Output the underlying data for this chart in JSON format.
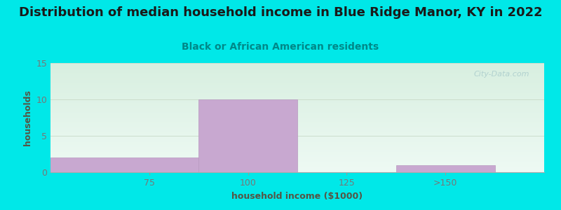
{
  "title": "Distribution of median household income in Blue Ridge Manor, KY in 2022",
  "subtitle": "Black or African American residents",
  "xlabel": "household income ($1000)",
  "ylabel": "households",
  "bin_edges": [
    50,
    87.5,
    112.5,
    137.5,
    162.5
  ],
  "bar_values": [
    2,
    10,
    0,
    1
  ],
  "xtick_values": [
    75,
    100,
    125
  ],
  "xtick_extra": ">150",
  "xtick_extra_pos": 150,
  "bar_color": "#c8a8d0",
  "bar_edge_color": "#b899c0",
  "ylim": [
    0,
    15
  ],
  "xlim": [
    50,
    175
  ],
  "yticks": [
    0,
    5,
    10,
    15
  ],
  "background_color": "#00e8e8",
  "plot_bg_top": "#d8efe0",
  "plot_bg_bottom": "#eefaf4",
  "title_color": "#1a1a1a",
  "subtitle_color": "#008888",
  "axis_label_color": "#555544",
  "tick_color": "#777777",
  "grid_color": "#ccddcc",
  "watermark_text": "City-Data.com",
  "watermark_color": "#aacccc",
  "title_fontsize": 13,
  "subtitle_fontsize": 10,
  "label_fontsize": 9
}
